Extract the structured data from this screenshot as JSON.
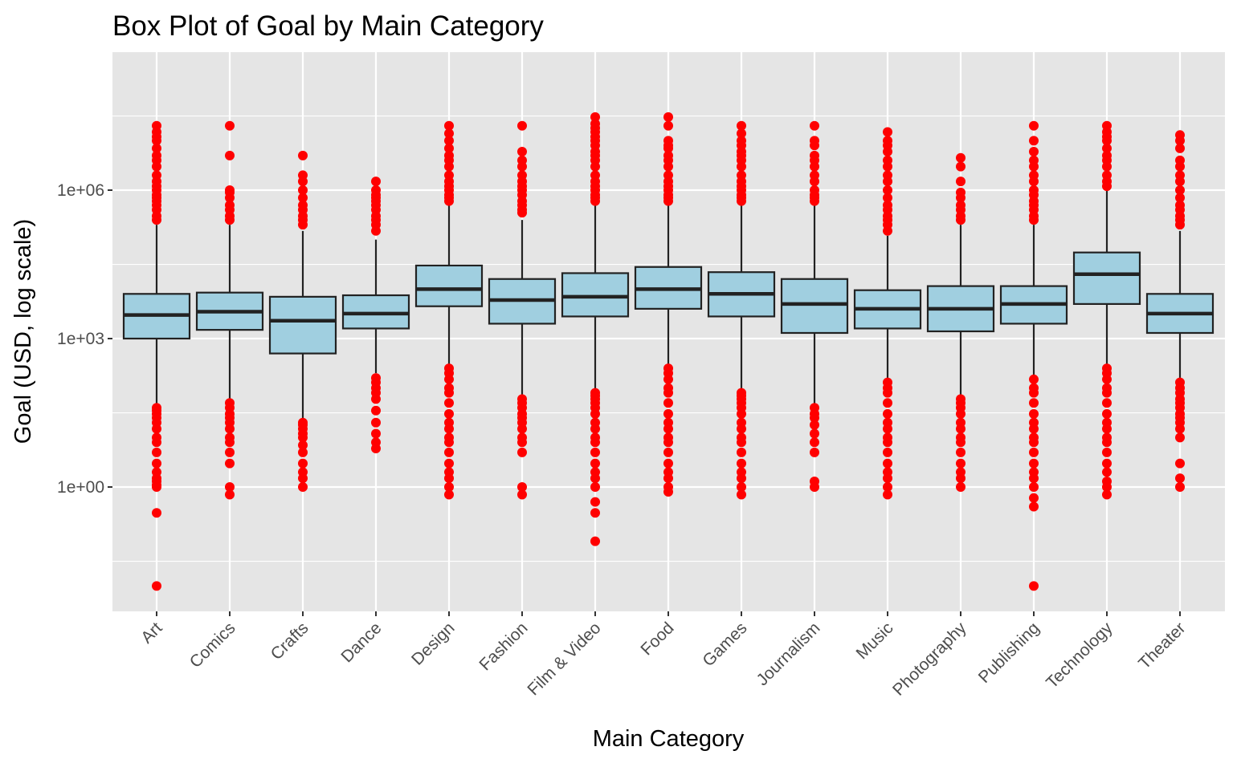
{
  "chart_data": {
    "type": "box",
    "title": "Box Plot of Goal by Main Category",
    "xlabel": "Main Category",
    "ylabel": "Goal (USD, log scale)",
    "y_scale": "log10",
    "ylim": [
      0.0025,
      30000000
    ],
    "y_ticks": [
      {
        "value": 1,
        "label": "1e+00"
      },
      {
        "value": 1000,
        "label": "1e+03"
      },
      {
        "value": 1000000,
        "label": "1e+06"
      }
    ],
    "y_minor_ticks": [
      0.0316,
      31.6,
      31600,
      31600000
    ],
    "grid": true,
    "legend": "none",
    "colors": {
      "panel": "#e5e5e5",
      "grid": "#ffffff",
      "box_fill": "#a0cfe0",
      "box_line": "#222222",
      "outlier": "#ff0000",
      "tick_text": "#4d4d4d"
    },
    "categories": [
      "Art",
      "Comics",
      "Crafts",
      "Dance",
      "Design",
      "Fashion",
      "Film & Video",
      "Food",
      "Games",
      "Journalism",
      "Music",
      "Photography",
      "Publishing",
      "Technology",
      "Theater"
    ],
    "boxes": [
      {
        "category": "Art",
        "whisker_low": 40,
        "q1": 1000,
        "median": 3000,
        "q3": 8000,
        "whisker_high": 200000,
        "outliers": [
          0.01,
          0.3,
          1,
          1.1,
          1.3,
          1.5,
          2,
          3,
          5,
          8,
          10,
          15,
          20,
          25,
          30,
          35,
          40,
          250000,
          300000,
          400000,
          500000,
          600000,
          700000,
          800000,
          1000000,
          1200000,
          1500000,
          2000000,
          3000000,
          4000000,
          5000000,
          7000000,
          10000000,
          12000000,
          15000000,
          20000000
        ]
      },
      {
        "category": "Comics",
        "whisker_low": 50,
        "q1": 1500,
        "median": 3500,
        "q3": 8500,
        "whisker_high": 200000,
        "outliers": [
          0.7,
          1,
          3,
          5,
          8,
          10,
          15,
          20,
          25,
          30,
          40,
          50,
          250000,
          300000,
          400000,
          500000,
          700000,
          900000,
          1000000,
          5000000,
          20000000
        ]
      },
      {
        "category": "Crafts",
        "whisker_low": 20,
        "q1": 500,
        "median": 2300,
        "q3": 7000,
        "whisker_high": 150000,
        "outliers": [
          1,
          1.5,
          2,
          3,
          5,
          7,
          10,
          12,
          15,
          18,
          20,
          200000,
          250000,
          300000,
          400000,
          500000,
          700000,
          1000000,
          1500000,
          2000000,
          5000000
        ]
      },
      {
        "category": "Dance",
        "whisker_low": 200,
        "q1": 1600,
        "median": 3200,
        "q3": 7500,
        "whisker_high": 100000,
        "outliers": [
          6,
          8,
          12,
          20,
          35,
          60,
          80,
          100,
          130,
          160,
          150000,
          200000,
          250000,
          300000,
          400000,
          500000,
          600000,
          700000,
          800000,
          1000000,
          1500000
        ]
      },
      {
        "category": "Design",
        "whisker_low": 300,
        "q1": 4500,
        "median": 10000,
        "q3": 30000,
        "whisker_high": 500000,
        "outliers": [
          0.7,
          1,
          1.5,
          2,
          3,
          5,
          8,
          10,
          15,
          20,
          30,
          50,
          80,
          100,
          150,
          200,
          250,
          600000,
          700000,
          800000,
          1000000,
          1200000,
          1500000,
          2000000,
          3000000,
          4000000,
          5000000,
          7000000,
          10000000,
          14000000,
          20000000
        ]
      },
      {
        "category": "Fashion",
        "whisker_low": 60,
        "q1": 2000,
        "median": 6000,
        "q3": 16000,
        "whisker_high": 250000,
        "outliers": [
          0.7,
          1,
          5,
          8,
          10,
          15,
          20,
          25,
          30,
          40,
          50,
          60,
          350000,
          400000,
          500000,
          600000,
          800000,
          1000000,
          1200000,
          1500000,
          2000000,
          3000000,
          4000000,
          6000000,
          20000000
        ]
      },
      {
        "category": "Film & Video",
        "whisker_low": 80,
        "q1": 2800,
        "median": 7000,
        "q3": 21000,
        "whisker_high": 500000,
        "outliers": [
          0.08,
          0.3,
          0.5,
          1,
          1.5,
          2,
          3,
          5,
          8,
          10,
          15,
          20,
          30,
          40,
          50,
          60,
          70,
          80,
          600000,
          700000,
          800000,
          1000000,
          1200000,
          1500000,
          2000000,
          3000000,
          4000000,
          5000000,
          6000000,
          8000000,
          10000000,
          12000000,
          15000000,
          18000000,
          22000000,
          30000000
        ]
      },
      {
        "category": "Food",
        "whisker_low": 300,
        "q1": 4000,
        "median": 10000,
        "q3": 28000,
        "whisker_high": 500000,
        "outliers": [
          0.8,
          1,
          1.5,
          2,
          3,
          5,
          8,
          10,
          15,
          20,
          30,
          50,
          80,
          100,
          150,
          200,
          250,
          600000,
          700000,
          800000,
          1000000,
          1200000,
          1500000,
          2000000,
          3000000,
          4000000,
          5000000,
          7000000,
          8000000,
          10000000,
          20000000,
          30000000
        ]
      },
      {
        "category": "Games",
        "whisker_low": 80,
        "q1": 2800,
        "median": 8000,
        "q3": 22000,
        "whisker_high": 500000,
        "outliers": [
          0.7,
          1,
          1.5,
          2,
          3,
          5,
          8,
          10,
          15,
          20,
          30,
          40,
          50,
          60,
          70,
          80,
          600000,
          700000,
          800000,
          1000000,
          1200000,
          1500000,
          2000000,
          3000000,
          4000000,
          5000000,
          6000000,
          8000000,
          10000000,
          14000000,
          20000000
        ]
      },
      {
        "category": "Journalism",
        "whisker_low": 40,
        "q1": 1300,
        "median": 5000,
        "q3": 16000,
        "whisker_high": 500000,
        "outliers": [
          1,
          1.3,
          5,
          8,
          12,
          18,
          25,
          30,
          40,
          600000,
          700000,
          800000,
          1000000,
          1500000,
          2000000,
          3000000,
          4000000,
          5000000,
          8000000,
          10000000,
          20000000
        ]
      },
      {
        "category": "Music",
        "whisker_low": 100,
        "q1": 1600,
        "median": 4000,
        "q3": 9500,
        "whisker_high": 120000,
        "outliers": [
          0.7,
          1,
          1.5,
          2,
          3,
          5,
          8,
          10,
          15,
          20,
          30,
          50,
          80,
          100,
          130,
          150000,
          200000,
          250000,
          300000,
          400000,
          500000,
          700000,
          1000000,
          1500000,
          2000000,
          3000000,
          4000000,
          6000000,
          8000000,
          10000000,
          15000000
        ]
      },
      {
        "category": "Photography",
        "whisker_low": 70,
        "q1": 1400,
        "median": 4000,
        "q3": 11500,
        "whisker_high": 200000,
        "outliers": [
          1,
          1.5,
          2,
          3,
          5,
          8,
          10,
          15,
          20,
          30,
          40,
          50,
          60,
          250000,
          300000,
          400000,
          500000,
          700000,
          900000,
          1500000,
          3000000,
          4500000
        ]
      },
      {
        "category": "Publishing",
        "whisker_low": 100,
        "q1": 2000,
        "median": 5000,
        "q3": 11500,
        "whisker_high": 200000,
        "outliers": [
          0.01,
          0.4,
          0.6,
          1,
          1.5,
          2,
          3,
          5,
          8,
          10,
          15,
          20,
          30,
          50,
          80,
          100,
          150,
          250000,
          300000,
          400000,
          500000,
          600000,
          800000,
          1000000,
          1500000,
          2000000,
          3000000,
          4000000,
          6000000,
          10000000,
          20000000
        ]
      },
      {
        "category": "Technology",
        "whisker_low": 300,
        "q1": 5000,
        "median": 20000,
        "q3": 55000,
        "whisker_high": 1000000,
        "outliers": [
          0.7,
          1,
          1.3,
          2,
          3,
          5,
          8,
          10,
          15,
          20,
          30,
          50,
          80,
          100,
          150,
          200,
          250,
          1200000,
          1500000,
          2000000,
          3000000,
          4000000,
          5000000,
          7000000,
          10000000,
          12000000,
          15000000,
          20000000
        ]
      },
      {
        "category": "Theater",
        "whisker_low": 100,
        "q1": 1300,
        "median": 3200,
        "q3": 8000,
        "whisker_high": 150000,
        "outliers": [
          1,
          1.5,
          3,
          10,
          15,
          20,
          25,
          30,
          40,
          50,
          60,
          80,
          100,
          130,
          200000,
          250000,
          300000,
          400000,
          500000,
          700000,
          1000000,
          1500000,
          2000000,
          3000000,
          4000000,
          7000000,
          10000000,
          13000000
        ]
      }
    ]
  }
}
